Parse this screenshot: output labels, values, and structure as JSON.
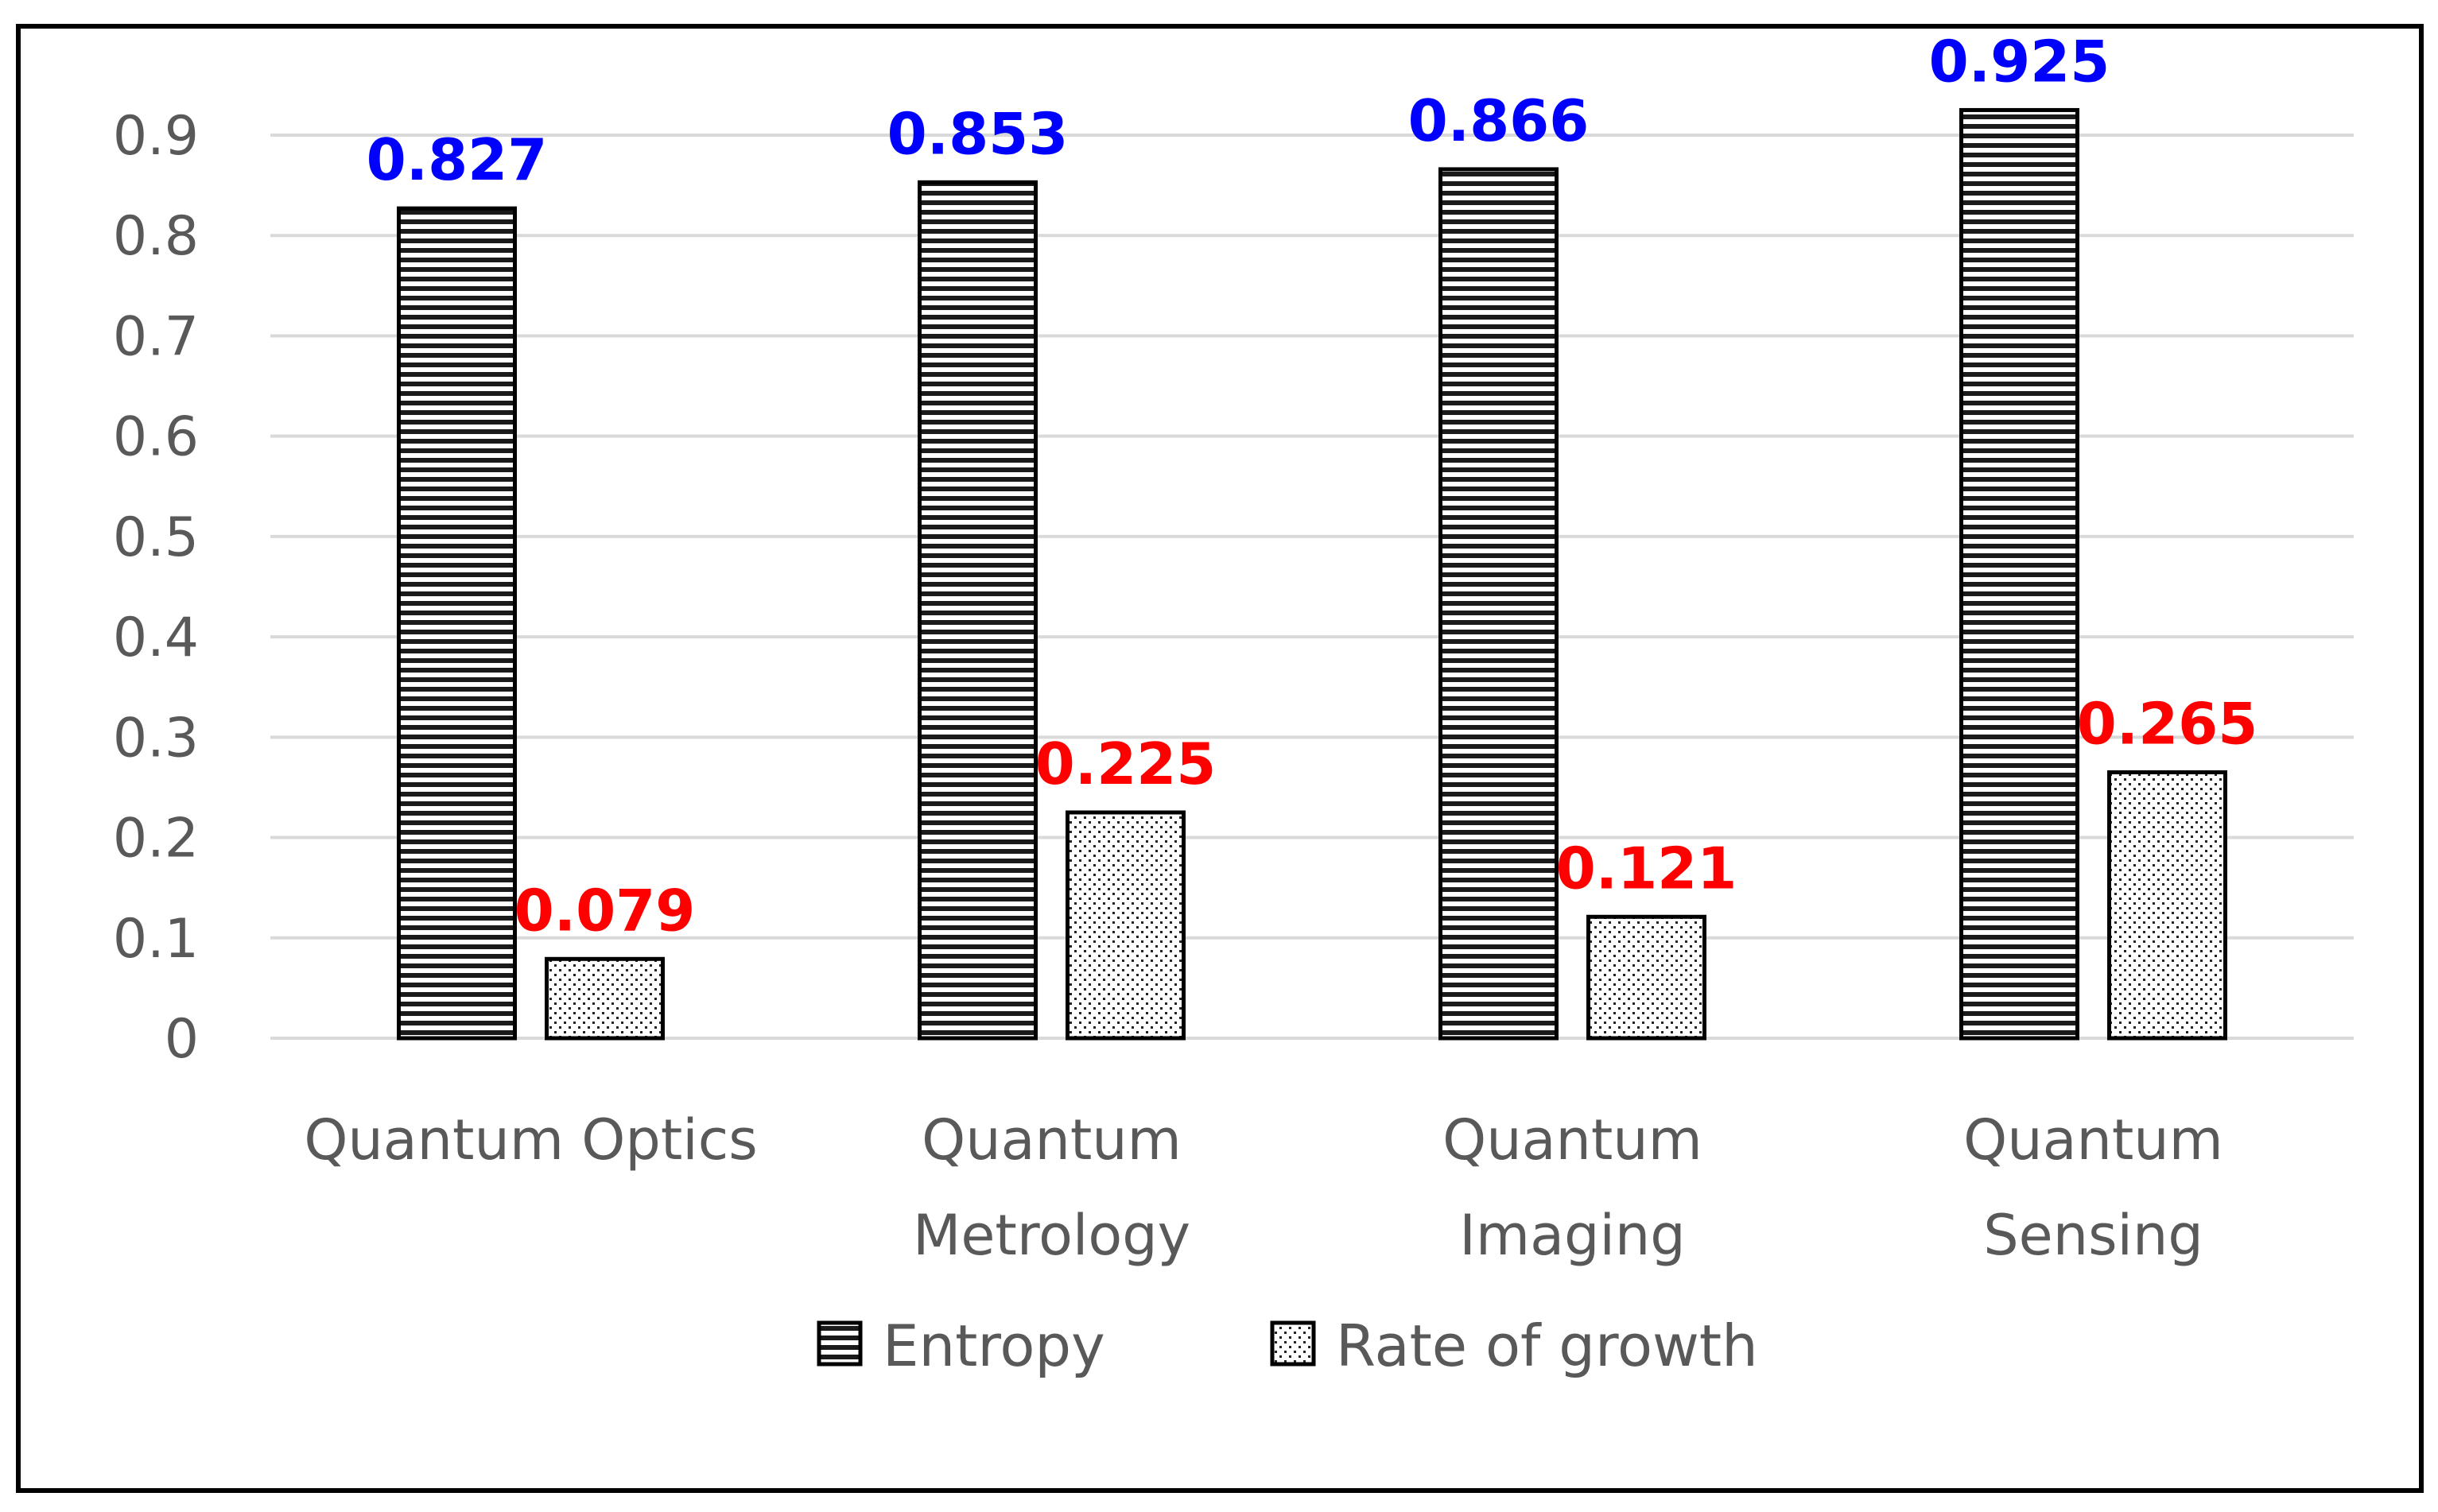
{
  "chart_data": {
    "type": "bar",
    "title": "",
    "xlabel": "",
    "ylabel": "",
    "categories": [
      [
        "Quantum Optics"
      ],
      [
        "Quantum",
        "Metrology"
      ],
      [
        "Quantum",
        "Imaging"
      ],
      [
        "Quantum",
        "Sensing"
      ]
    ],
    "series": [
      {
        "name": "Entropy",
        "values": [
          0.827,
          0.853,
          0.866,
          0.925
        ],
        "pattern": "horizontal-stripes",
        "label_color": "#0000ff"
      },
      {
        "name": "Rate of growth",
        "values": [
          0.079,
          0.225,
          0.121,
          0.265
        ],
        "pattern": "dots",
        "label_color": "#ff0000"
      }
    ],
    "ylim": [
      0,
      0.9
    ],
    "yticks": [
      "0",
      "0.1",
      "0.2",
      "0.3",
      "0.4",
      "0.5",
      "0.6",
      "0.7",
      "0.8",
      "0.9"
    ],
    "grid": true,
    "legend_position": "bottom"
  }
}
